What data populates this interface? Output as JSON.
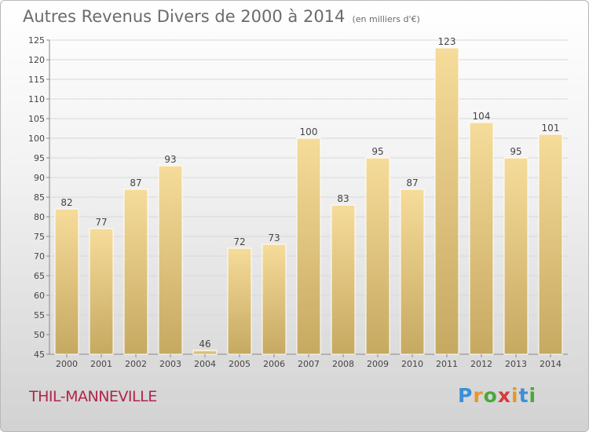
{
  "header": {
    "title": "Autres Revenus Divers de 2000 à 2014",
    "unit": "(en milliers d'€)"
  },
  "footer": {
    "city": "THIL-MANNEVILLE",
    "logo_letters": [
      "P",
      "r",
      "o",
      "x",
      "i",
      "t",
      "i"
    ],
    "logo_colors": [
      "#3a8fd6",
      "#e8962a",
      "#4aa83c",
      "#d63a3a",
      "#e8962a",
      "#3a8fd6",
      "#4aa83c"
    ]
  },
  "chart_data": {
    "type": "bar",
    "categories": [
      "2000",
      "2001",
      "2002",
      "2003",
      "2004",
      "2005",
      "2006",
      "2007",
      "2008",
      "2009",
      "2010",
      "2011",
      "2012",
      "2013",
      "2014"
    ],
    "values": [
      82,
      77,
      87,
      93,
      46,
      72,
      73,
      100,
      83,
      95,
      87,
      123,
      104,
      95,
      101
    ],
    "ylim": [
      45,
      125
    ],
    "yticks": [
      45,
      50,
      55,
      60,
      65,
      70,
      75,
      80,
      85,
      90,
      95,
      100,
      105,
      110,
      115,
      120,
      125
    ],
    "grid": true,
    "colors": {
      "bar_top": "#f6dc9a",
      "bar_bottom": "#c6a961",
      "grid": "#d8d8d8",
      "text": "#444444"
    }
  }
}
